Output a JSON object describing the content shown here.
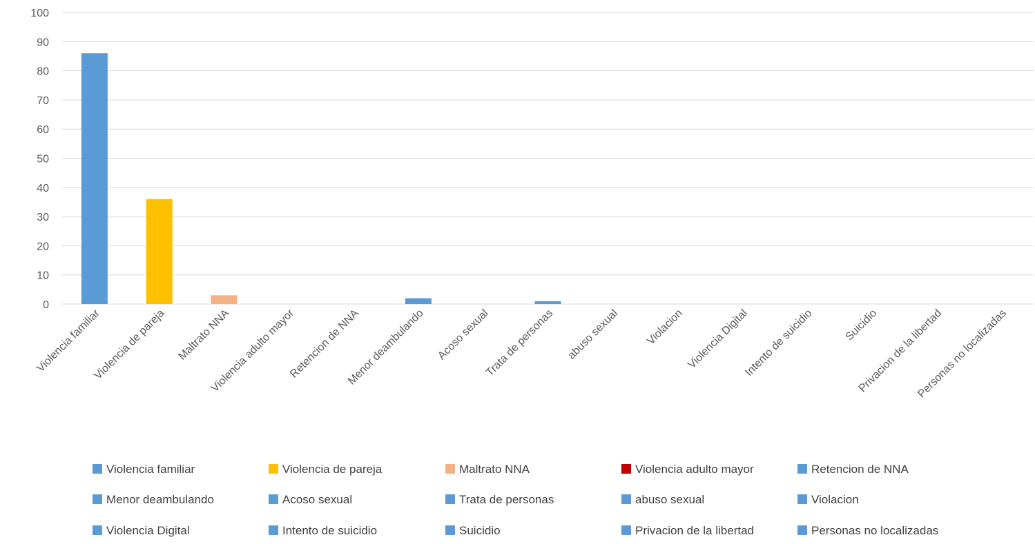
{
  "chart_data": {
    "type": "bar",
    "title": "",
    "xlabel": "",
    "ylabel": "",
    "ylim": [
      0,
      100
    ],
    "yticks": [
      0,
      10,
      20,
      30,
      40,
      50,
      60,
      70,
      80,
      90,
      100
    ],
    "grid": true,
    "legend_position": "bottom",
    "categories": [
      "Violencia familiar",
      "Violencia de pareja",
      "Maltrato NNA",
      "Violencia adulto mayor",
      "Retencion de NNA",
      "Menor deambulando",
      "Acoso sexual",
      "Trata de personas",
      "abuso sexual",
      "Violacion",
      "Violencia Digital",
      "Intento de suicidio",
      "Suicidio",
      "Privacion de la libertad",
      "Personas no localizadas"
    ],
    "values": [
      86,
      36,
      3,
      0,
      0,
      2,
      0,
      1,
      0,
      0,
      0,
      0,
      0,
      0,
      0
    ],
    "colors": [
      "#5b9bd5",
      "#ffc000",
      "#f4b183",
      "#c00000",
      "#5b9bd5",
      "#5b9bd5",
      "#5b9bd5",
      "#5b9bd5",
      "#5b9bd5",
      "#5b9bd5",
      "#5b9bd5",
      "#5b9bd5",
      "#5b9bd5",
      "#5b9bd5",
      "#5b9bd5"
    ],
    "legend": [
      "Violencia familiar",
      "Violencia de pareja",
      "Maltrato NNA",
      "Violencia adulto mayor",
      "Retencion de NNA",
      "Menor deambulando",
      "Acoso sexual",
      "Trata de personas",
      "abuso sexual",
      "Violacion",
      "Violencia Digital",
      "Intento de suicidio",
      "Suicidio",
      "Privacion de la libertad",
      "Personas no localizadas"
    ]
  }
}
